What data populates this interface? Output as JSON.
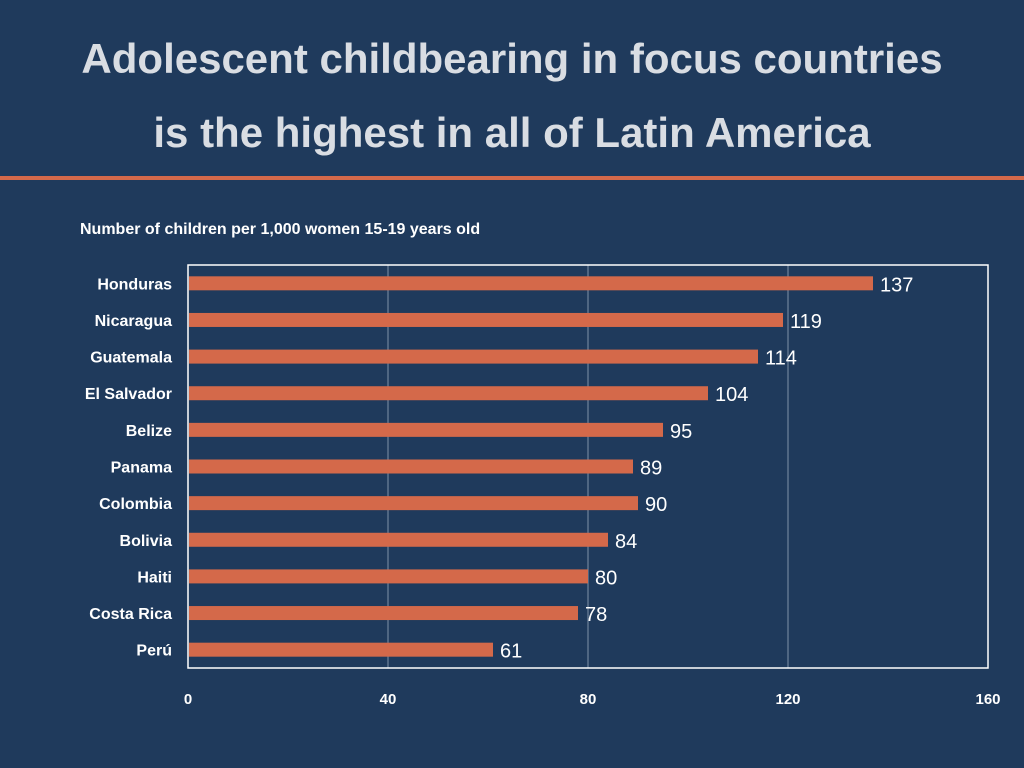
{
  "slide": {
    "title_line1": "Adolescent childbearing in focus countries",
    "title_line2": "is the highest in all of Latin America",
    "accent_color": "#d4694a",
    "background_color": "#1f3a5c"
  },
  "chart_data": {
    "type": "bar",
    "orientation": "horizontal",
    "title": "Number of children per 1,000 women 15-19 years old",
    "categories": [
      "Honduras",
      "Nicaragua",
      "Guatemala",
      "El Salvador",
      "Belize",
      "Panama",
      "Colombia",
      "Bolivia",
      "Haiti",
      "Costa Rica",
      "Perú"
    ],
    "values": [
      137,
      119,
      114,
      104,
      95,
      89,
      90,
      84,
      80,
      78,
      61
    ],
    "xlim": [
      0,
      160
    ],
    "xticks": [
      0,
      40,
      80,
      120,
      160
    ],
    "grid": true,
    "legend": "none",
    "bar_color": "#d4694a"
  }
}
